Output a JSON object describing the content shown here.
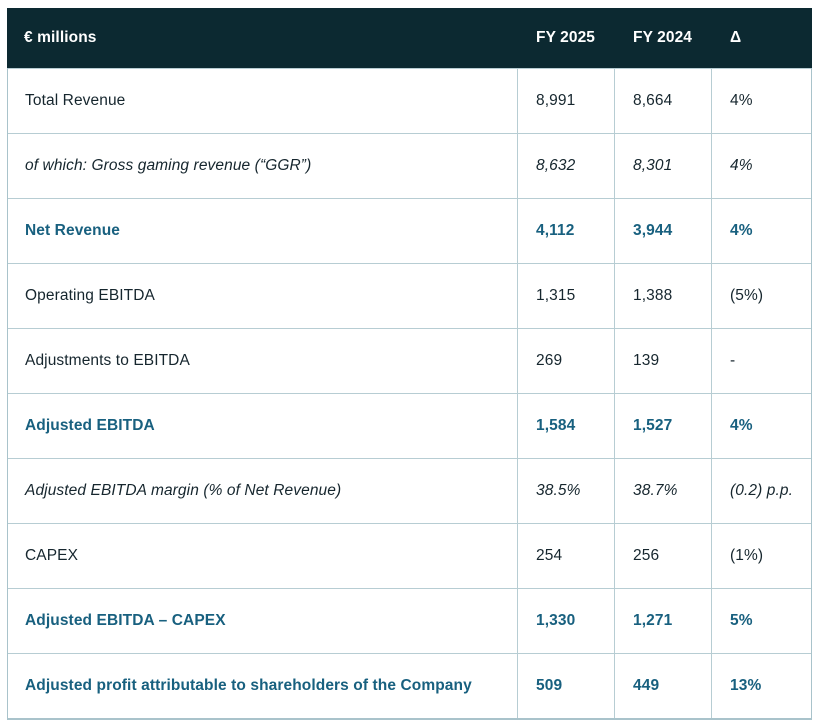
{
  "table": {
    "title": "€ millions",
    "columns": [
      "FY 2025",
      "FY 2024",
      "Δ"
    ],
    "colors": {
      "header_background": "#0c2931",
      "highlight_text": "#18607f",
      "border": "#b7cdd3",
      "body_text": "#16262e"
    },
    "rows": [
      {
        "label": "Total Revenue",
        "fy2025": "8,991",
        "fy2024": "8,664",
        "delta": "4%",
        "style": "normal"
      },
      {
        "label": "of which: Gross gaming revenue (“GGR”)",
        "fy2025": "8,632",
        "fy2024": "8,301",
        "delta": "4%",
        "style": "italic"
      },
      {
        "label": "Net Revenue",
        "fy2025": "4,112",
        "fy2024": "3,944",
        "delta": "4%",
        "style": "highlight"
      },
      {
        "label": "Operating EBITDA",
        "fy2025": "1,315",
        "fy2024": "1,388",
        "delta": "(5%)",
        "style": "normal"
      },
      {
        "label": "Adjustments to EBITDA",
        "fy2025": "269",
        "fy2024": "139",
        "delta": "-",
        "style": "normal"
      },
      {
        "label": "Adjusted EBITDA",
        "fy2025": "1,584",
        "fy2024": "1,527",
        "delta": "4%",
        "style": "highlight"
      },
      {
        "label": "Adjusted EBITDA margin (% of Net Revenue)",
        "fy2025": "38.5%",
        "fy2024": "38.7%",
        "delta": "(0.2) p.p.",
        "style": "italic"
      },
      {
        "label": "CAPEX",
        "fy2025": "254",
        "fy2024": "256",
        "delta": "(1%)",
        "style": "normal"
      },
      {
        "label": "Adjusted EBITDA – CAPEX",
        "fy2025": "1,330",
        "fy2024": "1,271",
        "delta": "5%",
        "style": "highlight"
      },
      {
        "label": "Adjusted profit attributable to shareholders of the Company",
        "fy2025": "509",
        "fy2024": "449",
        "delta": "13%",
        "style": "highlight"
      }
    ]
  }
}
